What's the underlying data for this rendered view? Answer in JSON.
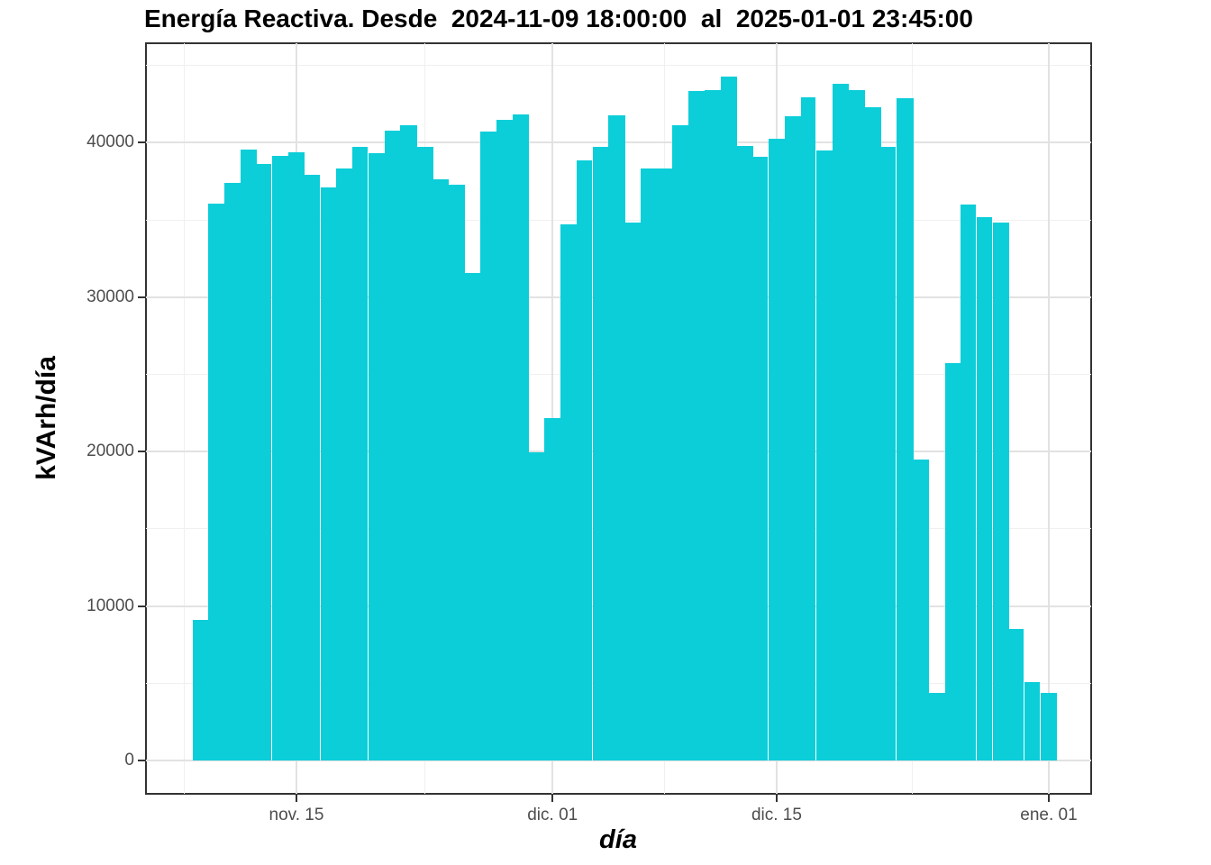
{
  "header": {
    "title": "Energía Reactiva. Desde  2024-11-09 18:00:00  al  2025-01-01 23:45:00"
  },
  "chart_data": {
    "type": "bar",
    "title": "Energía Reactiva. Desde  2024-11-09 18:00:00  al  2025-01-01 23:45:00",
    "xlabel": "día",
    "ylabel": "kVArh/día",
    "x_tick_labels": [
      "nov. 15",
      "dic. 01",
      "dic. 15",
      "ene. 01"
    ],
    "x_tick_day_index": [
      6,
      22,
      36,
      53
    ],
    "x_minor_day_index": [
      -1,
      14,
      29,
      44.5
    ],
    "y_tick_values": [
      0,
      10000,
      20000,
      30000,
      40000
    ],
    "y_tick_labels": [
      "0",
      "10000",
      "20000",
      "30000",
      "40000"
    ],
    "y_minor_values": [
      5000,
      15000,
      25000,
      35000,
      45000
    ],
    "ylim": [
      0,
      46000
    ],
    "grid": true,
    "legend_position": "none",
    "categories": [
      "2024-11-09",
      "2024-11-10",
      "2024-11-11",
      "2024-11-12",
      "2024-11-13",
      "2024-11-14",
      "2024-11-15",
      "2024-11-16",
      "2024-11-17",
      "2024-11-18",
      "2024-11-19",
      "2024-11-20",
      "2024-11-21",
      "2024-11-22",
      "2024-11-23",
      "2024-11-24",
      "2024-11-25",
      "2024-11-26",
      "2024-11-27",
      "2024-11-28",
      "2024-11-29",
      "2024-11-30",
      "2024-12-01",
      "2024-12-02",
      "2024-12-03",
      "2024-12-04",
      "2024-12-05",
      "2024-12-06",
      "2024-12-07",
      "2024-12-08",
      "2024-12-09",
      "2024-12-10",
      "2024-12-11",
      "2024-12-12",
      "2024-12-13",
      "2024-12-14",
      "2024-12-15",
      "2024-12-16",
      "2024-12-17",
      "2024-12-18",
      "2024-12-19",
      "2024-12-20",
      "2024-12-21",
      "2024-12-22",
      "2024-12-23",
      "2024-12-24",
      "2024-12-25",
      "2024-12-26",
      "2024-12-27",
      "2024-12-28",
      "2024-12-29",
      "2024-12-30",
      "2024-12-31",
      "2025-01-01"
    ],
    "values": [
      9100,
      36050,
      37400,
      39550,
      38600,
      39150,
      39350,
      37900,
      37100,
      38300,
      39750,
      39300,
      40800,
      41150,
      39750,
      37650,
      37300,
      31550,
      40700,
      41500,
      41800,
      19950,
      22150,
      34700,
      38850,
      39700,
      41750,
      34850,
      38350,
      38350,
      41150,
      43350,
      43400,
      44300,
      39800,
      39100,
      40250,
      41700,
      42950,
      39500,
      43800,
      43400,
      42300,
      39750,
      42900,
      19500,
      4400,
      25700,
      36000,
      35200,
      34800,
      8500,
      5050,
      4400
    ],
    "seam_after_indices": [
      4,
      7,
      10,
      24,
      35,
      38,
      43,
      48,
      49,
      51,
      52
    ]
  },
  "colors": {
    "bar": "#0BCED9",
    "grid_major": "#E2E2E2",
    "grid_minor": "#F0F0F0",
    "axis_text": "#4D4D4D",
    "panel_border": "#333333",
    "background": "#FFFFFF"
  }
}
